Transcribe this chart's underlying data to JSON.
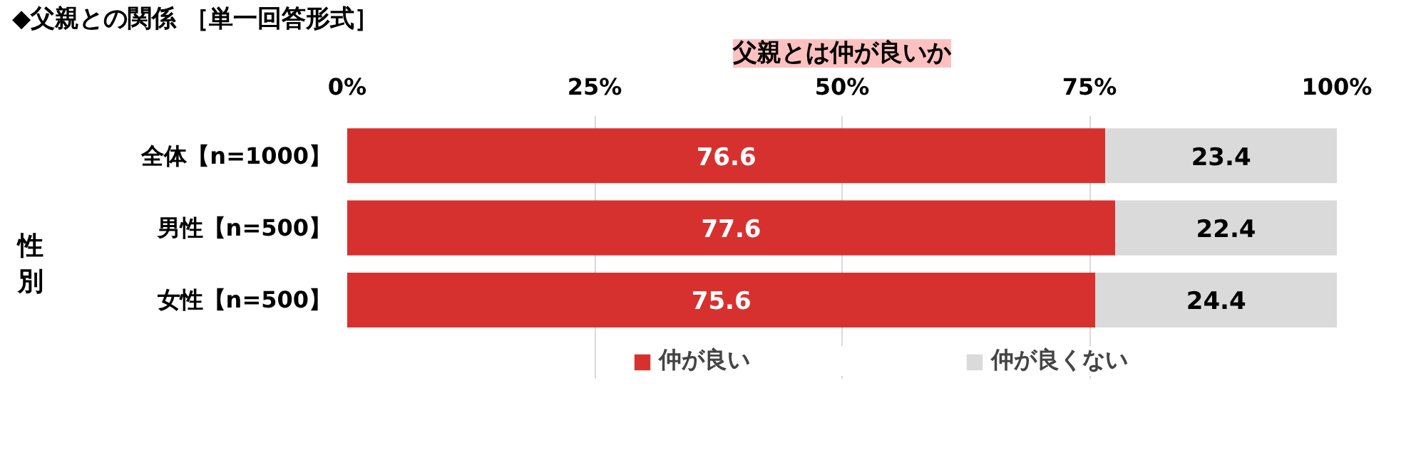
{
  "chart_data": {
    "type": "bar",
    "orientation": "horizontal",
    "stacked": true,
    "title": "◆父親との関係 ［単一回答形式］",
    "subtitle": "父親とは仲が良いか",
    "categories": [
      "全体【n=1000】",
      "男性【n=500】",
      "女性【n=500】"
    ],
    "series": [
      {
        "name": "仲が良い",
        "color": "#d7312f",
        "values": [
          76.6,
          77.6,
          75.6
        ]
      },
      {
        "name": "仲が良くない",
        "color": "#dadada",
        "values": [
          23.4,
          22.4,
          24.4
        ]
      }
    ],
    "xlim": [
      0,
      100
    ],
    "xticks": [
      {
        "value": 0,
        "label": "0%"
      },
      {
        "value": 25,
        "label": "25%"
      },
      {
        "value": 50,
        "label": "50%"
      },
      {
        "value": 75,
        "label": "75%"
      },
      {
        "value": 100,
        "label": "100%"
      }
    ],
    "data_labels": true,
    "legend": "bottom",
    "grid": "x",
    "annotations": [
      "性別"
    ]
  }
}
